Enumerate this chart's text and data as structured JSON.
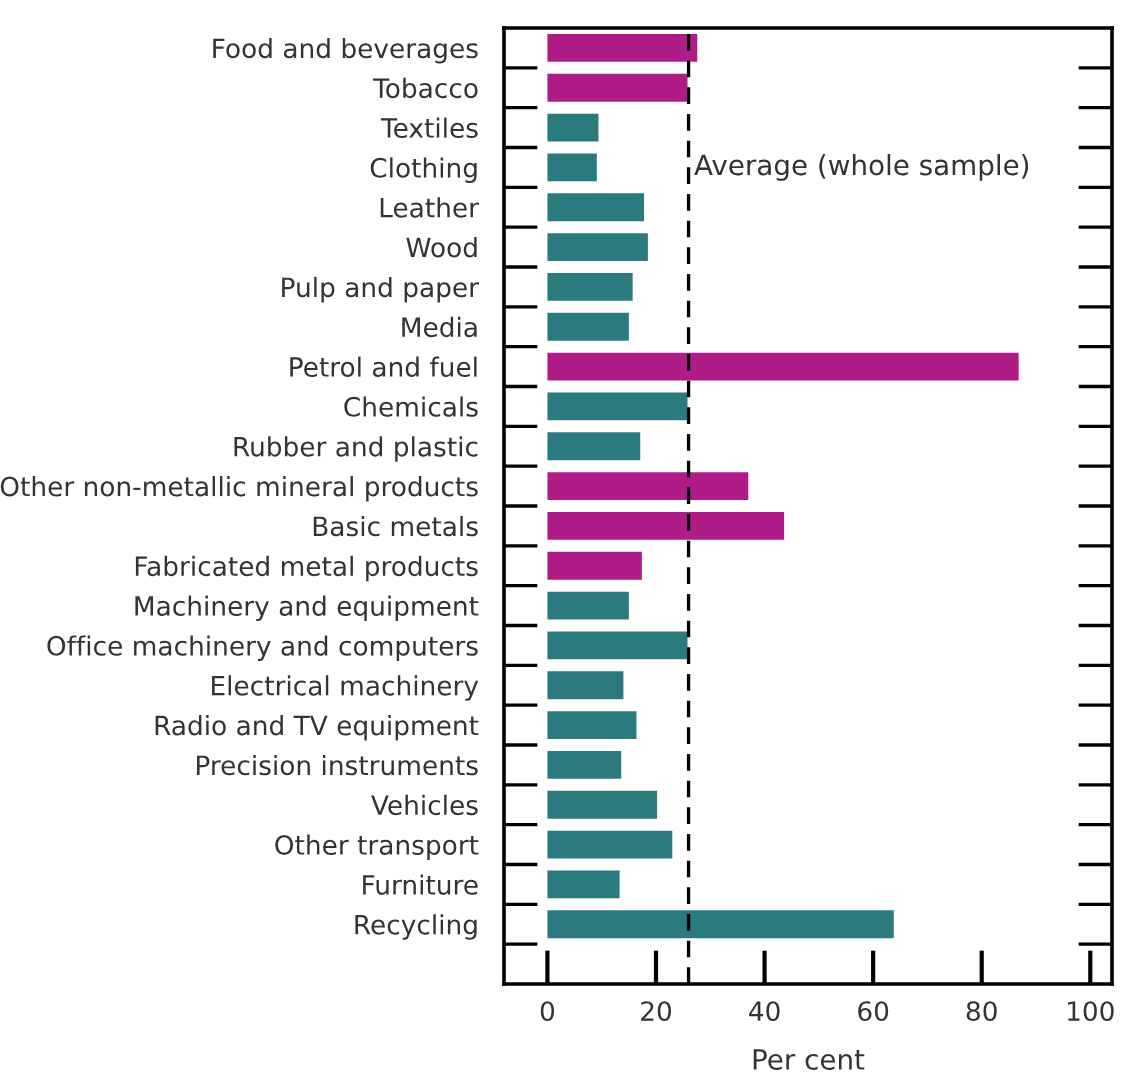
{
  "chart_data": {
    "type": "bar",
    "orientation": "horizontal",
    "xlabel": "Per cent",
    "categories": [
      "Food and beverages",
      "Tobacco",
      "Textiles",
      "Clothing",
      "Leather",
      "Wood",
      "Pulp and paper",
      "Media",
      "Petrol and fuel",
      "Chemicals",
      "Rubber and plastic",
      "Other non-metallic mineral products",
      "Basic metals",
      "Fabricated metal products",
      "Machinery and equipment",
      "Office machinery and computers",
      "Electrical machinery",
      "Radio and TV equipment",
      "Precision instruments",
      "Vehicles",
      "Other transport",
      "Furniture",
      "Recycling"
    ],
    "values": [
      27.6,
      25.8,
      9.4,
      9.1,
      17.8,
      18.5,
      15.7,
      15.0,
      86.8,
      25.8,
      17.1,
      37.0,
      43.6,
      17.4,
      15.0,
      25.8,
      14.0,
      16.4,
      13.6,
      20.2,
      23.0,
      13.3,
      63.8
    ],
    "colors": [
      "#b01c87",
      "#b01c87",
      "#2b7a7e",
      "#2b7a7e",
      "#2b7a7e",
      "#2b7a7e",
      "#2b7a7e",
      "#2b7a7e",
      "#b01c87",
      "#2b7a7e",
      "#2b7a7e",
      "#b01c87",
      "#b01c87",
      "#b01c87",
      "#2b7a7e",
      "#2b7a7e",
      "#2b7a7e",
      "#2b7a7e",
      "#2b7a7e",
      "#2b7a7e",
      "#2b7a7e",
      "#2b7a7e",
      "#2b7a7e"
    ],
    "xlim": [
      -8,
      104
    ],
    "xticks": [
      0,
      20,
      40,
      60,
      80,
      100
    ],
    "ref_lines": [
      {
        "axis": "x",
        "value": 26.0,
        "label": "Average (whole sample)",
        "color": "#000000",
        "line_style": "dashed"
      }
    ],
    "grid": false,
    "legend": false
  }
}
